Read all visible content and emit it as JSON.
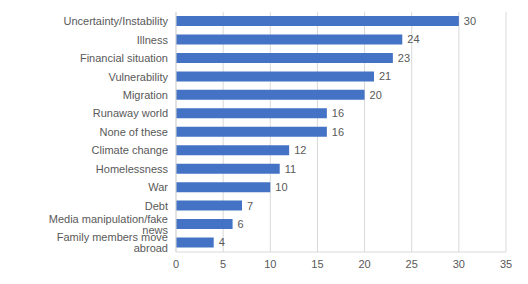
{
  "chart_data": {
    "type": "bar",
    "orientation": "horizontal",
    "categories": [
      "Uncertainty/Instability",
      "Illness",
      "Financial situation",
      "Vulnerability",
      "Migration",
      "Runaway world",
      "None of these",
      "Climate change",
      "Homelessness",
      "War",
      "Debt",
      "Media manipulation/fake news",
      "Family members move abroad"
    ],
    "values": [
      30,
      24,
      23,
      21,
      20,
      16,
      16,
      12,
      11,
      10,
      7,
      6,
      4
    ],
    "color": "#4472c4",
    "xlim": [
      0,
      35
    ],
    "xticks": [
      0,
      5,
      10,
      15,
      20,
      25,
      30,
      35
    ],
    "grid": true,
    "data_labels": true
  }
}
